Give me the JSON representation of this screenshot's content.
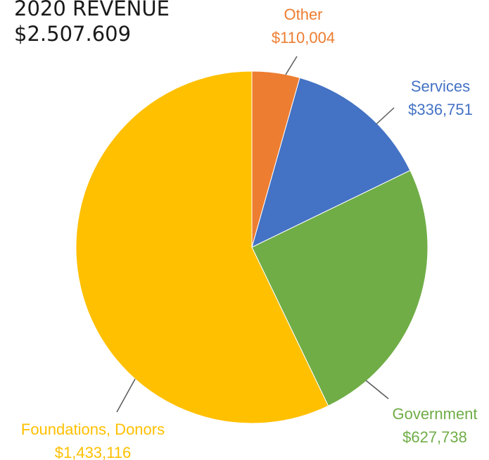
{
  "chart_data": {
    "type": "pie",
    "title": "2020 REVENUE",
    "subtitle": "$2.507.609",
    "slices": [
      {
        "name": "Other",
        "value": 110004,
        "value_label": "$110,004",
        "color": "#ED7D31"
      },
      {
        "name": "Services",
        "value": 336751,
        "value_label": "$336,751",
        "color": "#4472C4"
      },
      {
        "name": "Government",
        "value": 627738,
        "value_label": "$627,738",
        "color": "#70AD47"
      },
      {
        "name": "Foundations, Donors",
        "value": 1433116,
        "value_label": "$1,433,116",
        "color": "#FFC000"
      }
    ],
    "start_angle": "12 o'clock",
    "direction": "clockwise",
    "labels_outside_with_leader_lines": true
  }
}
